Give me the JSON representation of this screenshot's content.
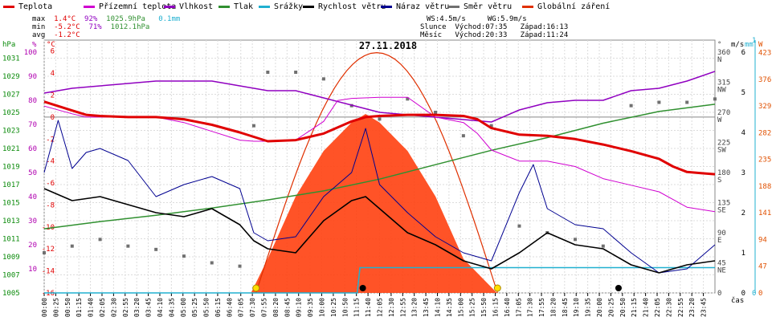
{
  "legend": [
    {
      "label": "Teplota",
      "color": "#e00000"
    },
    {
      "label": "Přízemní teplota",
      "color": "#d000d0"
    },
    {
      "label": "Vlhkost",
      "color": "#9000c0"
    },
    {
      "label": "Tlak",
      "color": "#309030"
    },
    {
      "label": "Srážky",
      "color": "#20b0d0"
    },
    {
      "label": "Rychlost větru",
      "color": "#000000"
    },
    {
      "label": "Náraz větru",
      "color": "#000090"
    },
    {
      "label": "Směr větru",
      "color": "#707070"
    },
    {
      "label": "Globální záření",
      "color": "#e03000"
    }
  ],
  "stats": {
    "max_label": "max",
    "max_temp": "1.4°C",
    "max_hum": "92%",
    "max_press": "1025.9hPa",
    "max_rain": "0.1mm",
    "min_label": "min",
    "min_temp": "-5.2°C",
    "min_hum": "71%",
    "min_press": "1012.1hPa",
    "avg_label": "avg",
    "avg_temp": "-1.2°C",
    "ws": "WS:4.5m/s",
    "wg": "WG:5.9m/s",
    "sun_label": "Slunce",
    "sun_rise": "Východ:07:35",
    "sun_set": "Západ:16:13",
    "moon_label": "Měsíc",
    "moon_rise": "Východ:20:33",
    "moon_set": "Západ:11:24"
  },
  "colors": {
    "temp": "#e00000",
    "feel": "#d000d0",
    "hum": "#9000c0",
    "press": "#309030",
    "rain": "#20b0d0",
    "wind": "#000000",
    "gust": "#000090",
    "dir": "#707070",
    "rad": "#ff3300",
    "radfill": "#ff4010",
    "sun": "#ffdd00",
    "hpa": "#0a8a0a",
    "pct": "#b000b0",
    "degc": "#e00000",
    "ms": "#000000",
    "mm": "#20b0d0",
    "w": "#e05000"
  },
  "chart_data": {
    "type": "line",
    "title": "27.11.2018",
    "x_unit": "čas",
    "x_ticks": [
      "00:00",
      "00:25",
      "00:50",
      "01:15",
      "01:40",
      "02:05",
      "02:30",
      "02:55",
      "03:20",
      "03:45",
      "04:10",
      "04:35",
      "05:00",
      "05:25",
      "05:50",
      "06:15",
      "06:40",
      "07:05",
      "07:30",
      "07:55",
      "08:20",
      "08:45",
      "09:10",
      "09:35",
      "10:00",
      "10:25",
      "10:50",
      "11:15",
      "11:40",
      "12:05",
      "12:30",
      "12:55",
      "13:20",
      "13:45",
      "14:10",
      "14:35",
      "15:00",
      "15:25",
      "15:50",
      "16:15",
      "16:40",
      "17:05",
      "17:30",
      "17:55",
      "18:20",
      "18:45",
      "19:10",
      "19:35",
      "20:00",
      "20:25",
      "20:50",
      "21:15",
      "21:40",
      "22:05",
      "22:30",
      "22:55",
      "23:20",
      "23:45"
    ],
    "axes": {
      "pressure": {
        "unit": "hPa",
        "ticks": [
          1005,
          1007,
          1009,
          1011,
          1013,
          1015,
          1017,
          1019,
          1021,
          1023,
          1025,
          1027,
          1029,
          1031
        ],
        "range": [
          1005,
          1033
        ]
      },
      "humidity": {
        "unit": "%",
        "ticks": [
          10,
          20,
          30,
          40,
          50,
          60,
          70,
          80,
          90,
          100
        ],
        "range": [
          0,
          105
        ]
      },
      "temperature": {
        "unit": "°C",
        "ticks": [
          -16,
          -14,
          -12,
          -10,
          -8,
          -6,
          -4,
          -2,
          0,
          2,
          4,
          6
        ],
        "range": [
          -16,
          7
        ]
      },
      "direction": {
        "unit": "°",
        "ticks": [
          0,
          45,
          90,
          135,
          180,
          225,
          270,
          315,
          360
        ],
        "labels": [
          "",
          "NE",
          "E",
          "SE",
          "S",
          "SW",
          "W",
          "NW",
          "N"
        ],
        "range": [
          0,
          378
        ]
      },
      "wind": {
        "unit": "m/s",
        "ticks": [
          0,
          1,
          2,
          3,
          4,
          5,
          6
        ],
        "range": [
          0,
          6.3
        ]
      },
      "rain": {
        "unit": "mm",
        "ticks": [
          0,
          1
        ],
        "range": [
          0,
          1
        ]
      },
      "radiation": {
        "unit": "W",
        "ticks": [
          0,
          47,
          94,
          141,
          188,
          235,
          282,
          329,
          376,
          423
        ],
        "range": [
          0,
          445
        ]
      }
    },
    "sunrise_hour": 7.58,
    "sunset_hour": 16.22,
    "moonrise_hour": 20.55,
    "moonset_hour": 11.4,
    "series": [
      {
        "name": "Teplota",
        "axis": "temperature",
        "x": [
          0,
          0.5,
          1,
          1.5,
          2,
          3,
          4,
          5,
          6,
          7,
          7.5,
          8,
          9,
          10,
          11,
          11.5,
          12,
          13,
          14,
          15,
          15.5,
          16,
          17,
          18,
          19,
          20,
          20.5,
          21,
          22,
          22.5,
          23,
          23.5,
          24
        ],
        "y": [
          1.4,
          1,
          0.6,
          0.2,
          0.1,
          0,
          0,
          -0.2,
          -0.7,
          -1.4,
          -1.8,
          -2.2,
          -2.1,
          -1.5,
          -0.4,
          0,
          0.1,
          0.2,
          0.2,
          0.1,
          -0.2,
          -1,
          -1.6,
          -1.7,
          -2,
          -2.5,
          -2.8,
          -3.1,
          -3.8,
          -4.5,
          -5,
          -5.1,
          -5.2
        ]
      },
      {
        "name": "Přízemní teplota",
        "axis": "temperature",
        "x": [
          0,
          1,
          1.5,
          2,
          3,
          4,
          5,
          6,
          7,
          7.5,
          8,
          9,
          10,
          10.5,
          11,
          12,
          13,
          14,
          15,
          15.5,
          16,
          17,
          18,
          19,
          20,
          21,
          22,
          22.5,
          23,
          24
        ],
        "y": [
          1,
          0.3,
          0,
          0,
          0,
          0,
          -0.5,
          -1.3,
          -2.1,
          -2.2,
          -2.2,
          -2.1,
          -0.4,
          1.5,
          1.7,
          1.8,
          1.8,
          0,
          -0.5,
          -1.5,
          -3,
          -4,
          -4,
          -4.5,
          -5.6,
          -6.2,
          -6.8,
          -7.5,
          -8.2,
          -8.6
        ]
      },
      {
        "name": "Vlhkost",
        "axis": "humidity",
        "x": [
          0,
          1,
          2,
          3,
          4,
          5,
          6,
          7,
          8,
          9,
          10,
          11,
          12,
          13,
          14,
          15,
          16,
          17,
          18,
          19,
          20,
          21,
          22,
          23,
          24
        ],
        "y": [
          83,
          85,
          86,
          87,
          88,
          88,
          88,
          86,
          84,
          84,
          81,
          78,
          75,
          74,
          73,
          72,
          71,
          76,
          79,
          80,
          80,
          84,
          85,
          88,
          92
        ]
      },
      {
        "name": "Tlak",
        "axis": "pressure",
        "x": [
          0,
          2,
          4,
          6,
          8,
          10,
          12,
          14,
          16,
          18,
          20,
          22,
          24
        ],
        "y": [
          1012.1,
          1012.9,
          1013.6,
          1014.4,
          1015.3,
          1016.3,
          1017.6,
          1019.2,
          1020.8,
          1022.2,
          1023.8,
          1025.1,
          1025.9
        ]
      },
      {
        "name": "Srážky",
        "axis": "rain",
        "x": [
          0,
          11.2,
          11.3,
          24
        ],
        "y": [
          0,
          0,
          0.1,
          0.1
        ]
      },
      {
        "name": "Rychlost větru",
        "axis": "wind",
        "x": [
          0,
          1,
          2,
          3,
          4,
          5,
          6,
          7,
          7.5,
          8,
          9,
          10,
          11,
          11.5,
          12,
          13,
          14,
          15,
          16,
          17,
          18,
          19,
          20,
          21,
          22,
          23,
          24
        ],
        "y": [
          2.6,
          2.3,
          2.4,
          2.2,
          2,
          1.9,
          2.1,
          1.7,
          1.3,
          1.1,
          1,
          1.8,
          2.3,
          2.4,
          2.1,
          1.5,
          1.2,
          0.8,
          0.6,
          1,
          1.5,
          1.2,
          1.1,
          0.7,
          0.5,
          0.7,
          0.8
        ]
      },
      {
        "name": "Náraz větru",
        "axis": "wind",
        "x": [
          0,
          0.5,
          1,
          1.5,
          2,
          3,
          4,
          5,
          6,
          7,
          7.5,
          8,
          9,
          10,
          11,
          11.5,
          12,
          13,
          14,
          15,
          16,
          17,
          17.5,
          18,
          19,
          20,
          21,
          22,
          23,
          24
        ],
        "y": [
          3,
          4.3,
          3.1,
          3.5,
          3.6,
          3.3,
          2.4,
          2.7,
          2.9,
          2.6,
          1.5,
          1.3,
          1.4,
          2.4,
          3,
          4.1,
          2.7,
          2,
          1.4,
          1,
          0.8,
          2.5,
          3.2,
          2.1,
          1.7,
          1.6,
          1,
          0.5,
          0.6,
          1.2
        ]
      },
      {
        "name": "Směr větru",
        "axis": "direction",
        "x": [
          0,
          1,
          2,
          3,
          4,
          5,
          6,
          7,
          7.5,
          8,
          9,
          10,
          11,
          12,
          13,
          14,
          15,
          16,
          17,
          18,
          19,
          20,
          21,
          22,
          23,
          24
        ],
        "y": [
          60,
          70,
          80,
          70,
          65,
          55,
          45,
          40,
          250,
          330,
          330,
          320,
          280,
          260,
          290,
          270,
          235,
          250,
          100,
          90,
          80,
          70,
          280,
          285,
          285,
          290
        ]
      },
      {
        "name": "Globální záření",
        "axis": "radiation",
        "x": [
          7.4,
          8,
          9,
          10,
          11,
          11.5,
          12,
          13,
          14,
          15,
          16.2
        ],
        "y": [
          0,
          60,
          170,
          250,
          300,
          315,
          300,
          250,
          170,
          60,
          0
        ]
      }
    ]
  }
}
